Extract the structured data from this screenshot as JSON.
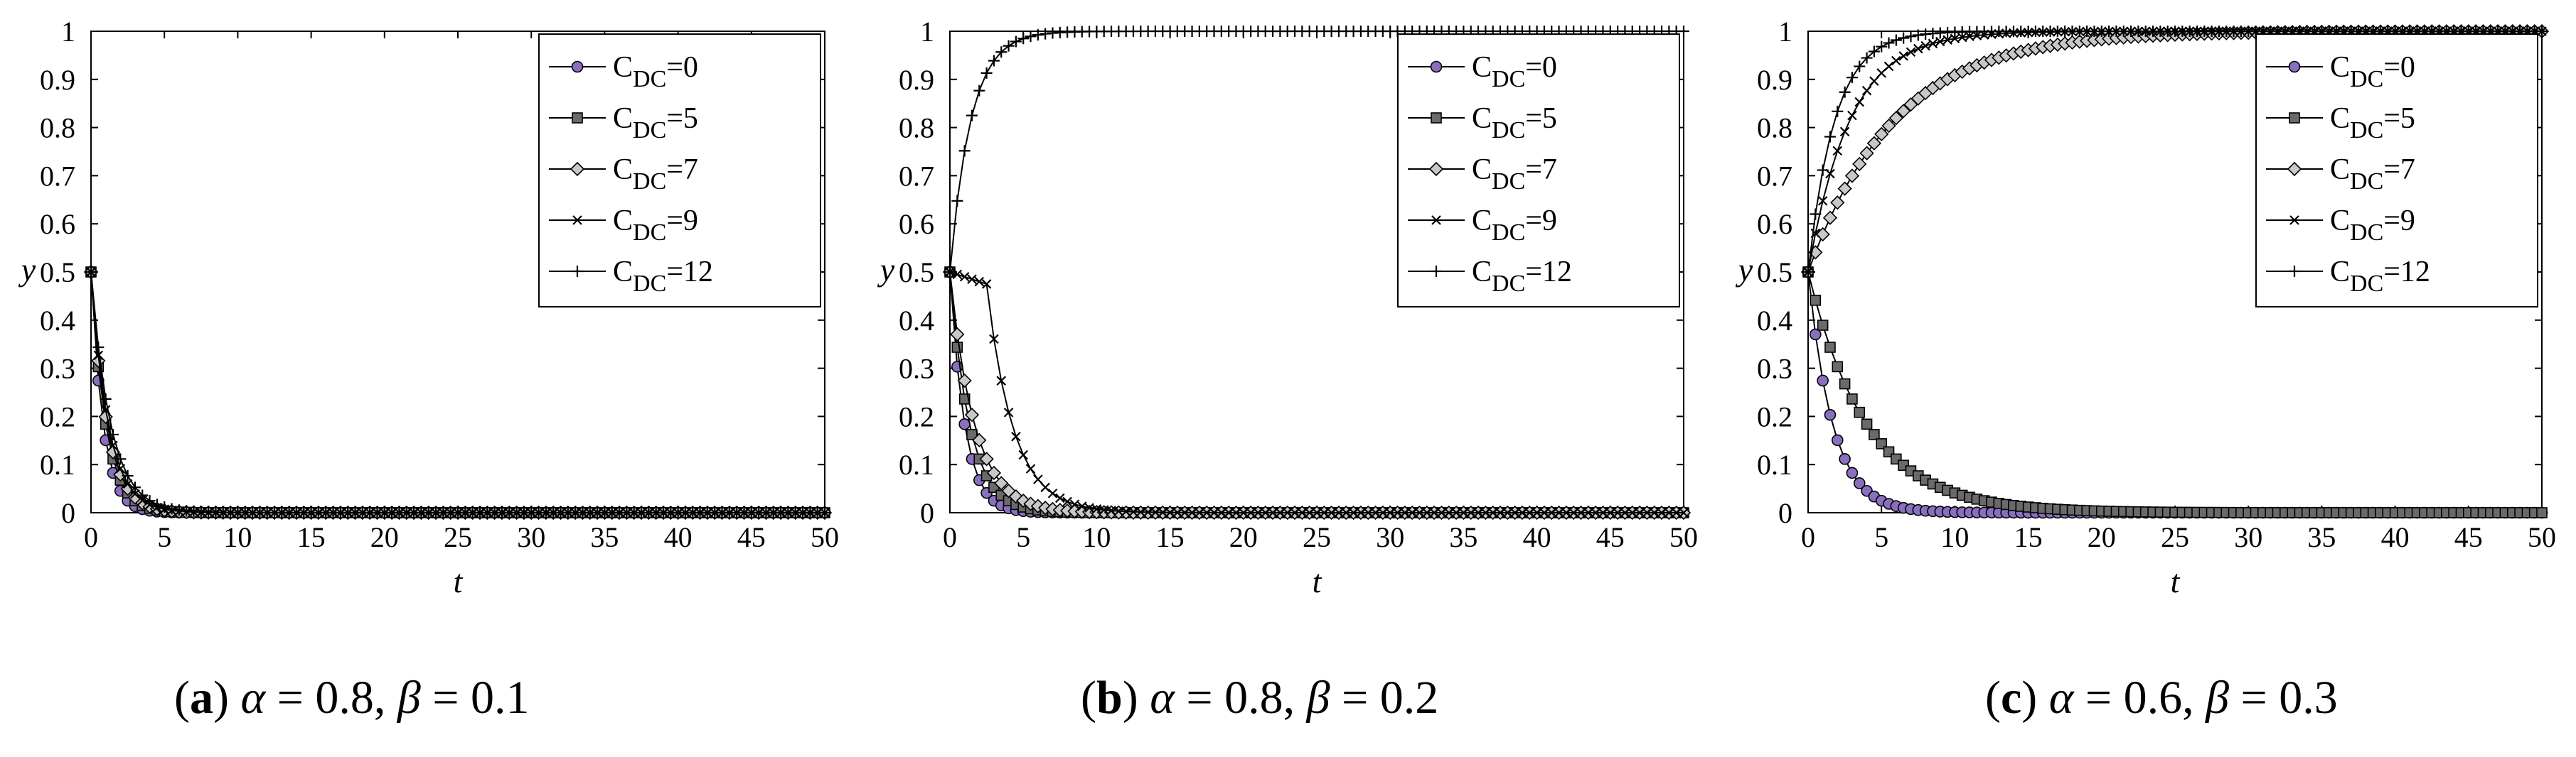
{
  "chart_data": [
    {
      "type": "line",
      "panel_label": "a",
      "caption": {
        "alpha": "0.8",
        "beta": "0.1"
      },
      "xlabel": "t",
      "ylabel": "y",
      "xlim": [
        0,
        50
      ],
      "ylim": [
        0,
        1
      ],
      "xticks": [
        0,
        5,
        10,
        15,
        20,
        25,
        30,
        35,
        40,
        45,
        50
      ],
      "yticks": [
        0,
        0.1,
        0.2,
        0.3,
        0.4,
        0.5,
        0.6,
        0.7,
        0.8,
        0.9,
        1
      ],
      "legend": "top-right",
      "series": [
        {
          "name": "C_DC=0",
          "marker": "circle",
          "start": 0.5,
          "target": 0,
          "rate": 1.2
        },
        {
          "name": "C_DC=5",
          "marker": "square",
          "start": 0.5,
          "target": 0,
          "rate": 1.0
        },
        {
          "name": "C_DC=7",
          "marker": "diamond",
          "start": 0.5,
          "target": 0,
          "rate": 0.92
        },
        {
          "name": "C_DC=9",
          "marker": "x",
          "start": 0.5,
          "target": 0,
          "rate": 0.85
        },
        {
          "name": "C_DC=12",
          "marker": "plus",
          "start": 0.5,
          "target": 0,
          "rate": 0.75
        }
      ]
    },
    {
      "type": "line",
      "panel_label": "b",
      "caption": {
        "alpha": "0.8",
        "beta": "0.2"
      },
      "xlabel": "t",
      "ylabel": "y",
      "xlim": [
        0,
        50
      ],
      "ylim": [
        0,
        1
      ],
      "xticks": [
        0,
        5,
        10,
        15,
        20,
        25,
        30,
        35,
        40,
        45,
        50
      ],
      "yticks": [
        0,
        0.1,
        0.2,
        0.3,
        0.4,
        0.5,
        0.6,
        0.7,
        0.8,
        0.9,
        1
      ],
      "legend": "top-right",
      "series": [
        {
          "name": "C_DC=0",
          "marker": "circle",
          "start": 0.5,
          "target": 0,
          "rate": 1.0
        },
        {
          "name": "C_DC=5",
          "marker": "square",
          "start": 0.5,
          "target": 0,
          "rate": 0.75
        },
        {
          "name": "C_DC=7",
          "marker": "diamond",
          "start": 0.5,
          "target": 0,
          "rate": 0.6
        },
        {
          "name": "C_DC=9",
          "marker": "x",
          "start": 0.5,
          "target": 0,
          "rate": 0.55,
          "delay": 2.5
        },
        {
          "name": "C_DC=12",
          "marker": "plus",
          "start": 0.5,
          "target": 1,
          "rate": 0.7
        }
      ]
    },
    {
      "type": "line",
      "panel_label": "c",
      "caption": {
        "alpha": "0.6",
        "beta": "0.3"
      },
      "xlabel": "t",
      "ylabel": "y",
      "xlim": [
        0,
        50
      ],
      "ylim": [
        0,
        1
      ],
      "xticks": [
        0,
        5,
        10,
        15,
        20,
        25,
        30,
        35,
        40,
        45,
        50
      ],
      "yticks": [
        0,
        0.1,
        0.2,
        0.3,
        0.4,
        0.5,
        0.6,
        0.7,
        0.8,
        0.9,
        1
      ],
      "legend": "top-right",
      "series": [
        {
          "name": "C_DC=0",
          "marker": "circle",
          "start": 0.5,
          "target": 0,
          "rate": 0.6
        },
        {
          "name": "C_DC=5",
          "marker": "square",
          "start": 0.5,
          "target": 0,
          "rate": 0.25
        },
        {
          "name": "C_DC=7",
          "marker": "diamond",
          "start": 0.5,
          "target": 1,
          "rate": 0.17
        },
        {
          "name": "C_DC=9",
          "marker": "x",
          "start": 0.5,
          "target": 1,
          "rate": 0.35
        },
        {
          "name": "C_DC=12",
          "marker": "plus",
          "start": 0.5,
          "target": 1,
          "rate": 0.55
        }
      ]
    }
  ],
  "colors": {
    "circle_fill": "#8a6fc0",
    "marker_fill": "#6a6a6a",
    "diamond_fill": "#c8c8c8",
    "ink": "#000000"
  },
  "legend_prefix": "C",
  "legend_subscript": "DC"
}
